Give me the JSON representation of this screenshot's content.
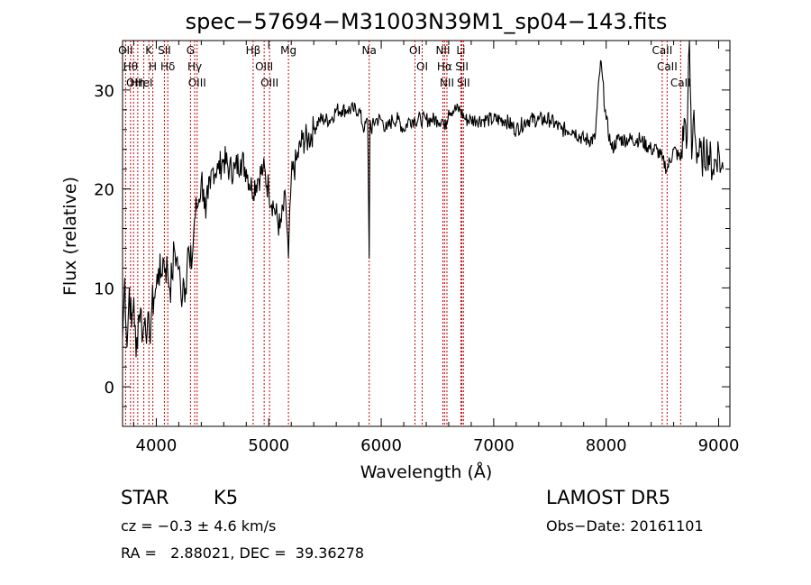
{
  "chart_data": {
    "type": "line",
    "title": "spec−57694−M31003N39M1_sp04−143.fits",
    "xlabel": "Wavelength (Å)",
    "ylabel": "Flux (relative)",
    "xlim": [
      3700,
      9100
    ],
    "ylim": [
      -4,
      35
    ],
    "x_ticks": [
      4000,
      5000,
      6000,
      7000,
      8000,
      9000
    ],
    "y_ticks": [
      0,
      10,
      20,
      30
    ],
    "grid": false,
    "line_color": "#000000",
    "marker_color": "#cc0000",
    "spectrum": {
      "x": [
        3700,
        3720,
        3740,
        3760,
        3780,
        3800,
        3820,
        3840,
        3860,
        3880,
        3900,
        3920,
        3940,
        3960,
        3980,
        4000,
        4020,
        4040,
        4060,
        4080,
        4100,
        4120,
        4140,
        4160,
        4180,
        4200,
        4220,
        4240,
        4260,
        4280,
        4300,
        4320,
        4340,
        4360,
        4380,
        4400,
        4420,
        4440,
        4460,
        4480,
        4500,
        4550,
        4600,
        4650,
        4700,
        4750,
        4800,
        4850,
        4900,
        4950,
        5000,
        5050,
        5100,
        5150,
        5175,
        5200,
        5250,
        5300,
        5350,
        5400,
        5450,
        5500,
        5550,
        5600,
        5650,
        5700,
        5750,
        5800,
        5850,
        5880,
        5893,
        5900,
        5910,
        5950,
        6000,
        6050,
        6100,
        6150,
        6200,
        6250,
        6300,
        6350,
        6400,
        6450,
        6500,
        6550,
        6563,
        6600,
        6650,
        6700,
        6750,
        6800,
        6850,
        6900,
        6950,
        7000,
        7100,
        7200,
        7300,
        7400,
        7500,
        7600,
        7700,
        7800,
        7900,
        7950,
        8000,
        8050,
        8100,
        8200,
        8300,
        8400,
        8450,
        8498,
        8542,
        8600,
        8662,
        8700,
        8720,
        8740,
        8760,
        8780,
        8800,
        8850,
        8900,
        8950,
        9000,
        9020,
        9040
      ],
      "y": [
        5,
        11,
        4,
        10,
        6,
        9,
        3,
        7,
        8,
        5,
        7,
        6,
        5,
        8,
        9,
        10,
        12,
        11,
        13,
        12,
        12,
        10,
        11,
        14,
        13,
        12,
        9,
        11,
        10,
        14,
        12,
        13,
        17,
        18,
        19,
        21,
        20,
        17,
        19,
        20,
        22,
        22,
        23,
        22,
        22,
        23,
        22,
        20,
        21,
        22,
        20,
        18,
        16,
        19,
        13,
        21,
        23,
        25,
        25,
        26,
        27,
        27,
        27,
        28,
        28,
        28,
        28,
        28,
        26,
        27,
        13,
        27,
        26,
        27,
        27,
        26,
        27,
        27,
        26,
        27,
        27,
        27,
        27,
        27,
        27,
        27,
        26,
        28,
        28,
        28,
        27,
        27,
        27,
        27,
        27,
        27,
        27,
        26,
        27,
        27,
        27,
        26,
        26,
        25,
        25,
        33,
        27,
        24,
        25,
        25,
        25,
        24,
        24,
        23,
        22,
        24,
        23,
        27,
        25,
        35,
        23,
        28,
        24,
        23,
        24,
        22,
        24,
        22,
        22
      ]
    },
    "lines": [
      {
        "w": 3727,
        "l": "OII"
      },
      {
        "w": 3771,
        "l": "Hθ"
      },
      {
        "w": 3798,
        "l": "OII"
      },
      {
        "w": 3835,
        "l": "Hη"
      },
      {
        "w": 3889,
        "l": "HeI"
      },
      {
        "w": 3934,
        "l": "K"
      },
      {
        "w": 3969,
        "l": "H"
      },
      {
        "w": 4072,
        "l": "SII"
      },
      {
        "w": 4102,
        "l": "Hδ"
      },
      {
        "w": 4304,
        "l": "G"
      },
      {
        "w": 4341,
        "l": "Hγ"
      },
      {
        "w": 4363,
        "l": "OIII"
      },
      {
        "w": 4861,
        "l": "Hβ"
      },
      {
        "w": 4959,
        "l": "OIII"
      },
      {
        "w": 5007,
        "l": "OIII"
      },
      {
        "w": 5175,
        "l": "Mg"
      },
      {
        "w": 5893,
        "l": "Na"
      },
      {
        "w": 6300,
        "l": "OI"
      },
      {
        "w": 6364,
        "l": "OI"
      },
      {
        "w": 6548,
        "l": "NII"
      },
      {
        "w": 6563,
        "l": "Hα"
      },
      {
        "w": 6584,
        "l": "NII"
      },
      {
        "w": 6708,
        "l": "Li"
      },
      {
        "w": 6717,
        "l": "SII"
      },
      {
        "w": 6731,
        "l": "SII"
      },
      {
        "w": 8498,
        "l": "CaII"
      },
      {
        "w": 8542,
        "l": "CaII"
      },
      {
        "w": 8662,
        "l": "CaII"
      }
    ]
  },
  "info": {
    "object_class": "STAR",
    "subclass": "K5",
    "survey": "LAMOST DR5",
    "cz": "cz = −0.3 ± 4.6 km/s",
    "obs_date": "Obs−Date: 20161101",
    "coords": "RA =   2.88021, DEC =  39.36278"
  }
}
